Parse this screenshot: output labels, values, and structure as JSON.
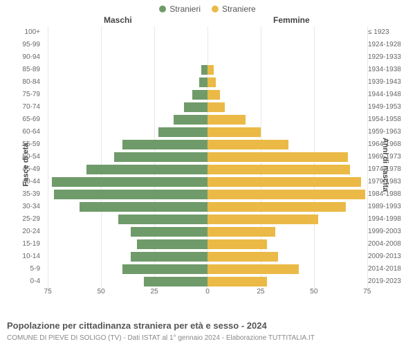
{
  "legend": {
    "male": "Stranieri",
    "female": "Straniere"
  },
  "column_headers": {
    "left": "Maschi",
    "right": "Femmine"
  },
  "y_axis_left_title": "Fasce di età",
  "y_axis_right_title": "Anni di nascita",
  "caption": "Popolazione per cittadinanza straniera per età e sesso - 2024",
  "subcaption": "COMUNE DI PIEVE DI SOLIGO (TV) - Dati ISTAT al 1° gennaio 2024 - Elaborazione TUTTITALIA.IT",
  "colors": {
    "male": "#6f9b6a",
    "female": "#ebb946",
    "grid": "#e8e8e8",
    "background": "#ffffff"
  },
  "pyramid": {
    "type": "population-pyramid",
    "x_max": 78,
    "x_ticks_left": [
      75,
      50,
      25,
      0
    ],
    "x_ticks_right": [
      0,
      25,
      50,
      75
    ],
    "rows": [
      {
        "age": "100+",
        "birth": "≤ 1923",
        "m": 0,
        "f": 0
      },
      {
        "age": "95-99",
        "birth": "1924-1928",
        "m": 0,
        "f": 0
      },
      {
        "age": "90-94",
        "birth": "1929-1933",
        "m": 0,
        "f": 0
      },
      {
        "age": "85-89",
        "birth": "1934-1938",
        "m": 3,
        "f": 3
      },
      {
        "age": "80-84",
        "birth": "1939-1943",
        "m": 4,
        "f": 4
      },
      {
        "age": "75-79",
        "birth": "1944-1948",
        "m": 7,
        "f": 6
      },
      {
        "age": "70-74",
        "birth": "1949-1953",
        "m": 11,
        "f": 8
      },
      {
        "age": "65-69",
        "birth": "1954-1958",
        "m": 16,
        "f": 18
      },
      {
        "age": "60-64",
        "birth": "1959-1963",
        "m": 23,
        "f": 25
      },
      {
        "age": "55-59",
        "birth": "1964-1968",
        "m": 40,
        "f": 38
      },
      {
        "age": "50-54",
        "birth": "1969-1973",
        "m": 44,
        "f": 66
      },
      {
        "age": "45-49",
        "birth": "1974-1978",
        "m": 57,
        "f": 67
      },
      {
        "age": "40-44",
        "birth": "1979-1983",
        "m": 73,
        "f": 72
      },
      {
        "age": "35-39",
        "birth": "1984-1988",
        "m": 72,
        "f": 74
      },
      {
        "age": "30-34",
        "birth": "1989-1993",
        "m": 60,
        "f": 65
      },
      {
        "age": "25-29",
        "birth": "1994-1998",
        "m": 42,
        "f": 52
      },
      {
        "age": "20-24",
        "birth": "1999-2003",
        "m": 36,
        "f": 32
      },
      {
        "age": "15-19",
        "birth": "2004-2008",
        "m": 33,
        "f": 28
      },
      {
        "age": "10-14",
        "birth": "2009-2013",
        "m": 36,
        "f": 33
      },
      {
        "age": "5-9",
        "birth": "2014-2018",
        "m": 40,
        "f": 43
      },
      {
        "age": "0-4",
        "birth": "2019-2023",
        "m": 30,
        "f": 28
      }
    ]
  }
}
